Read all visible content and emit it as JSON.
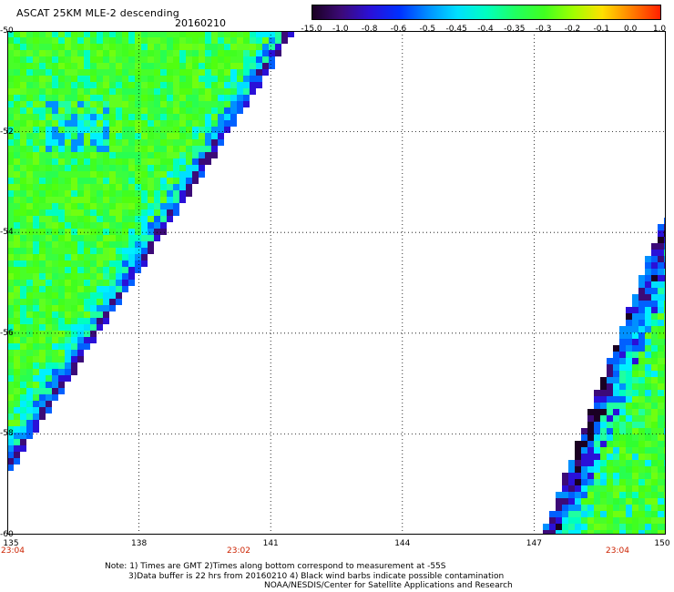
{
  "header": {
    "title": "ASCAT 25KM MLE-2 descending",
    "date": "20160210"
  },
  "colorbar": {
    "labels": [
      "-15.0",
      "-1.0",
      "-0.8",
      "-0.6",
      "-0.5",
      "-0.45",
      "-0.4",
      "-0.35",
      "-0.3",
      "-0.2",
      "-0.1",
      "0.0",
      "1.0"
    ],
    "colors": [
      "#1a0022",
      "#3c0a78",
      "#2a10d8",
      "#0030ff",
      "#0090ff",
      "#00e0ff",
      "#00ffc0",
      "#20ff60",
      "#40ff20",
      "#a0ff00",
      "#ffe000",
      "#ff8000",
      "#ff2000"
    ]
  },
  "axes": {
    "lat_labels": [
      "-50",
      "-52",
      "-54",
      "-56",
      "-58",
      "-60"
    ],
    "lon_labels": [
      "135",
      "138",
      "141",
      "144",
      "147",
      "150"
    ],
    "time_labels": [
      "23:04",
      "23:02",
      "23:04"
    ]
  },
  "notes": {
    "line1": "Note: 1) Times are GMT 2)Times along bottom correspond to measurement at -55S",
    "line2": "3)Data buffer is 22 hrs from 20160210 4) Black wind barbs indicate possible contamination",
    "line3": "NOAA/NESDIS/Center for Satellite Applications and Research"
  }
}
